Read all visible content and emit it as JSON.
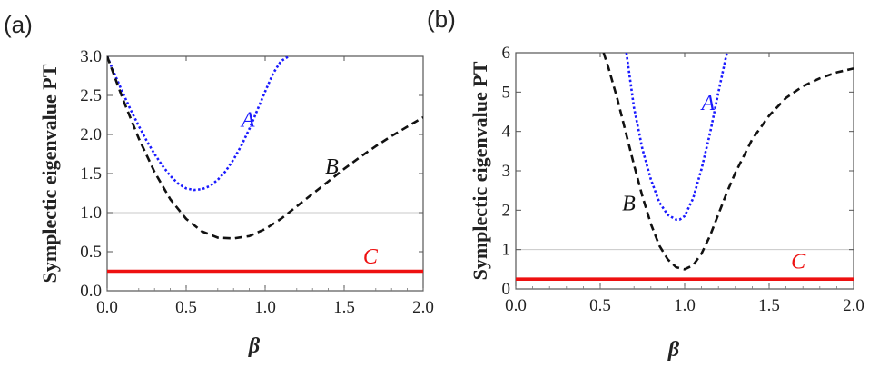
{
  "chart_data": [
    {
      "type": "line",
      "panel_label": "(a)",
      "xlabel": "β",
      "ylabel": "Symplectic eigenvalue PT",
      "xlim": [
        0.0,
        2.0
      ],
      "ylim": [
        0.0,
        3.0
      ],
      "xticks": [
        "0.0",
        "0.5",
        "1.0",
        "1.5",
        "2.0"
      ],
      "yticks": [
        "0.0",
        "0.5",
        "1.0",
        "1.5",
        "2.0",
        "2.5",
        "3.0"
      ],
      "reference_line": 1.0,
      "series": [
        {
          "name": "A",
          "style": "dotted",
          "color": "#1a1aff",
          "x": [
            0.0,
            0.05,
            0.1,
            0.15,
            0.2,
            0.25,
            0.3,
            0.35,
            0.4,
            0.45,
            0.5,
            0.55,
            0.6,
            0.65,
            0.7,
            0.75,
            0.8,
            0.85,
            0.9,
            0.95,
            1.0,
            1.05,
            1.1,
            1.15
          ],
          "y": [
            3.0,
            2.76,
            2.53,
            2.31,
            2.11,
            1.92,
            1.75,
            1.6,
            1.47,
            1.37,
            1.31,
            1.29,
            1.3,
            1.34,
            1.42,
            1.53,
            1.68,
            1.86,
            2.07,
            2.31,
            2.55,
            2.78,
            2.94,
            3.0
          ]
        },
        {
          "name": "B",
          "style": "dashed",
          "color": "#111111",
          "x": [
            0.0,
            0.1,
            0.2,
            0.3,
            0.4,
            0.5,
            0.6,
            0.7,
            0.8,
            0.9,
            1.0,
            1.1,
            1.2,
            1.3,
            1.4,
            1.5,
            1.6,
            1.7,
            1.8,
            1.9,
            2.0
          ],
          "y": [
            3.0,
            2.45,
            1.95,
            1.52,
            1.17,
            0.92,
            0.76,
            0.68,
            0.67,
            0.7,
            0.79,
            0.92,
            1.08,
            1.24,
            1.4,
            1.56,
            1.71,
            1.85,
            1.98,
            2.1,
            2.22
          ]
        },
        {
          "name": "C",
          "style": "solid",
          "color": "#ee1111",
          "x": [
            0.0,
            2.0
          ],
          "y": [
            0.25,
            0.25
          ]
        }
      ],
      "annotations": [
        {
          "text": "A",
          "x": 0.85,
          "y": 2.1,
          "color": "#1a1aff"
        },
        {
          "text": "B",
          "x": 1.38,
          "y": 1.5,
          "color": "#111111"
        },
        {
          "text": "C",
          "x": 1.62,
          "y": 0.35,
          "color": "#ee1111"
        }
      ]
    },
    {
      "type": "line",
      "panel_label": "(b)",
      "xlabel": "β",
      "ylabel": "Symplectic eigenvalue PT",
      "xlim": [
        0.0,
        2.0
      ],
      "ylim": [
        0,
        6
      ],
      "xticks": [
        "0.0",
        "0.5",
        "1.0",
        "1.5",
        "2.0"
      ],
      "yticks": [
        "0",
        "1",
        "2",
        "3",
        "4",
        "5",
        "6"
      ],
      "reference_line": 1.0,
      "series": [
        {
          "name": "A",
          "style": "dotted",
          "color": "#1a1aff",
          "x": [
            0.655,
            0.7,
            0.75,
            0.8,
            0.85,
            0.9,
            0.95,
            0.97,
            1.0,
            1.05,
            1.1,
            1.15,
            1.2,
            1.25
          ],
          "y": [
            6.0,
            4.6,
            3.55,
            2.78,
            2.2,
            1.88,
            1.76,
            1.76,
            1.85,
            2.3,
            3.05,
            3.95,
            5.0,
            6.0
          ]
        },
        {
          "name": "B",
          "style": "dashed",
          "color": "#111111",
          "x": [
            0.52,
            0.55,
            0.6,
            0.65,
            0.7,
            0.75,
            0.8,
            0.85,
            0.9,
            0.95,
            1.0,
            1.05,
            1.1,
            1.15,
            1.2,
            1.25,
            1.3,
            1.4,
            1.5,
            1.6,
            1.7,
            1.8,
            1.9,
            2.0
          ],
          "y": [
            6.0,
            5.6,
            4.85,
            4.0,
            3.15,
            2.35,
            1.65,
            1.1,
            0.75,
            0.55,
            0.5,
            0.6,
            0.9,
            1.35,
            1.9,
            2.45,
            2.95,
            3.8,
            4.4,
            4.85,
            5.15,
            5.35,
            5.5,
            5.6
          ]
        },
        {
          "name": "C",
          "style": "solid",
          "color": "#ee1111",
          "x": [
            0.0,
            2.0
          ],
          "y": [
            0.25,
            0.25
          ]
        }
      ],
      "annotations": [
        {
          "text": "A",
          "x": 1.1,
          "y": 4.55,
          "color": "#1a1aff"
        },
        {
          "text": "B",
          "x": 0.63,
          "y": 2.0,
          "color": "#111111"
        },
        {
          "text": "C",
          "x": 1.63,
          "y": 0.52,
          "color": "#ee1111"
        }
      ]
    }
  ]
}
